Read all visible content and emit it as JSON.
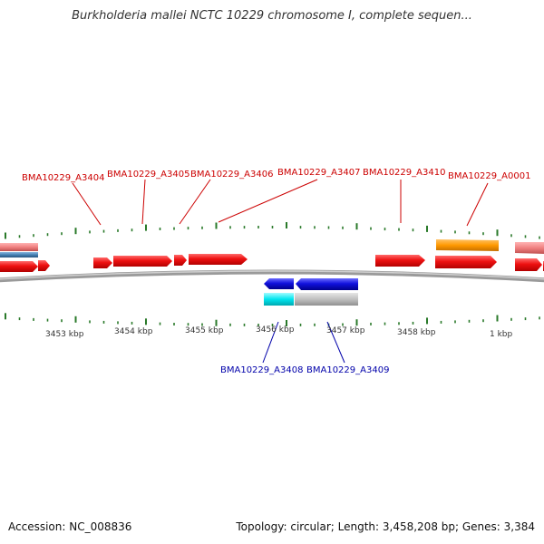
{
  "header": {
    "title": "Burkholderia mallei NCTC 10229 chromosome I, complete sequen..."
  },
  "footer": {
    "accession": "Accession: NC_008836",
    "topology": "Topology: circular; Length: 3,458,208 bp; Genes: 3,384"
  },
  "colors": {
    "forward_gene": "#ee1111",
    "reverse_gene": "#1111dd",
    "forward_label": "#cc0000",
    "reverse_label": "#0000aa",
    "orange_feature": "#ff9900",
    "cyan_feature": "#00e5ee",
    "gray_feature": "#c0c0c0",
    "pink_feature": "#f08080",
    "steel_feature": "#4682b4",
    "backbone": "#888888",
    "tick": "#2a7a2a"
  },
  "scale_ticks": [
    "3453 kbp",
    "3454 kbp",
    "3455 kbp",
    "3456 kbp",
    "3457 kbp",
    "3458 kbp",
    "1 kbp"
  ],
  "genes": [
    {
      "name": "BMA10229_A3404",
      "strand": "forward"
    },
    {
      "name": "BMA10229_A3405",
      "strand": "forward"
    },
    {
      "name": "BMA10229_A3406",
      "strand": "forward"
    },
    {
      "name": "BMA10229_A3407",
      "strand": "forward"
    },
    {
      "name": "BMA10229_A3410",
      "strand": "forward"
    },
    {
      "name": "BMA10229_A0001",
      "strand": "forward"
    },
    {
      "name": "BMA10229_A3408",
      "strand": "reverse"
    },
    {
      "name": "BMA10229_A3409",
      "strand": "reverse"
    }
  ]
}
